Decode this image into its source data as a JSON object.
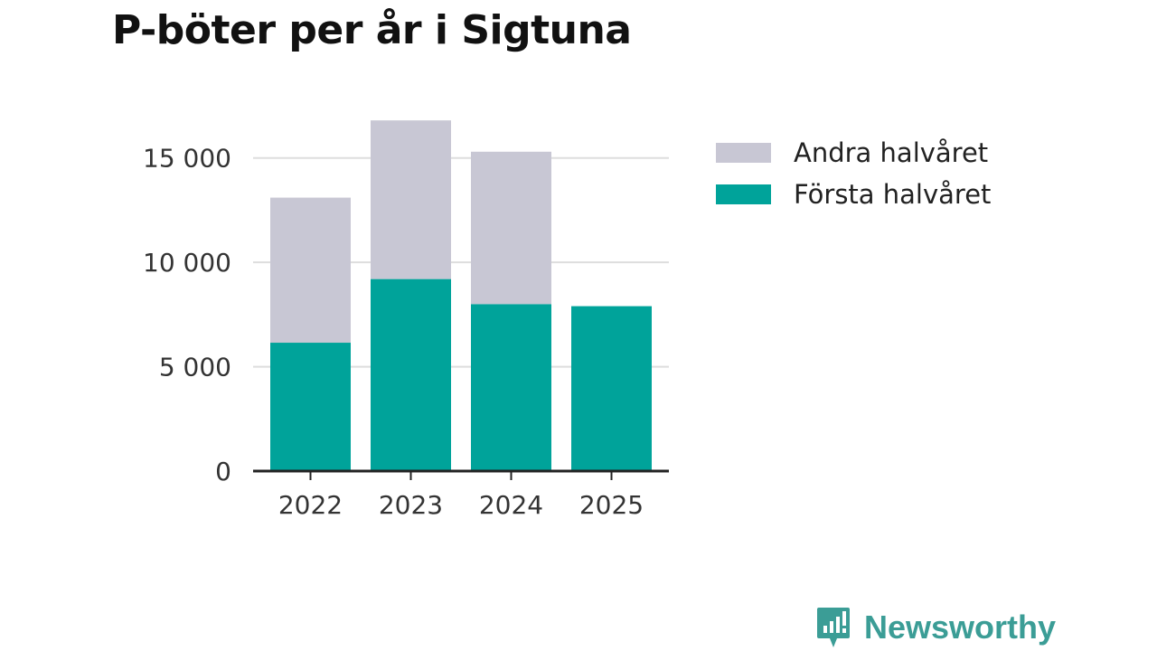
{
  "colors": {
    "first_half": "#00a39a",
    "second_half": "#c8c7d4",
    "grid": "#dddddd",
    "axis": "#222222",
    "brand": "#3b9d96"
  },
  "brand": {
    "name": "Newsworthy",
    "icon": "newsworthy-logo-icon"
  },
  "chart_data": {
    "type": "bar",
    "stacked": true,
    "title": "P-böter per år i Sigtuna",
    "categories": [
      "2022",
      "2023",
      "2024",
      "2025"
    ],
    "series": [
      {
        "name": "Första halvåret",
        "values": [
          6150,
          9200,
          8000,
          7900
        ]
      },
      {
        "name": "Andra halvåret",
        "values": [
          6950,
          7600,
          7300,
          0
        ]
      }
    ],
    "legend_order": [
      "Andra halvåret",
      "Första halvåret"
    ],
    "yticks": [
      0,
      5000,
      10000,
      15000
    ],
    "ytick_labels": [
      "0",
      "5 000",
      "10 000",
      "15 000"
    ],
    "ylim": [
      0,
      17500
    ],
    "grid": true,
    "legend_position": "right",
    "xlabel": "",
    "ylabel": ""
  }
}
